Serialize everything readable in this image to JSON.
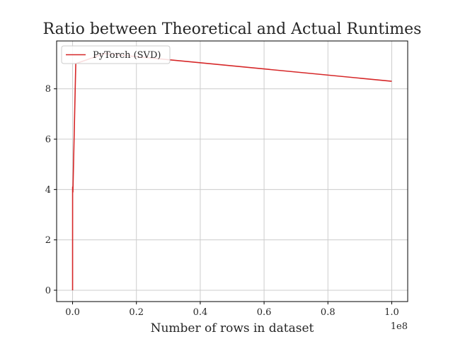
{
  "chart_data": {
    "type": "line",
    "title": "Ratio between Theoretical and Actual Runtimes",
    "xlabel": "Number of rows in dataset",
    "ylabel": "",
    "x_offset_label": "1e8",
    "xlim": [
      -5000000,
      105000000
    ],
    "ylim": [
      -0.45,
      9.9
    ],
    "x_ticks": [
      0,
      20000000,
      40000000,
      60000000,
      80000000,
      100000000
    ],
    "x_tick_labels": [
      "0.0",
      "0.2",
      "0.4",
      "0.6",
      "0.8",
      "1.0"
    ],
    "y_ticks": [
      0,
      2,
      4,
      6,
      8
    ],
    "y_tick_labels": [
      "0",
      "2",
      "4",
      "6",
      "8"
    ],
    "grid": true,
    "legend_position": "top-left",
    "series": [
      {
        "name": "PyTorch (SVD)",
        "color": "#d62728",
        "x": [
          100,
          1000,
          10000,
          100000,
          1000000,
          10000000,
          100000000
        ],
        "y": [
          0.0,
          1.8,
          4.1,
          3.9,
          9.0,
          9.4,
          8.3
        ]
      }
    ]
  }
}
